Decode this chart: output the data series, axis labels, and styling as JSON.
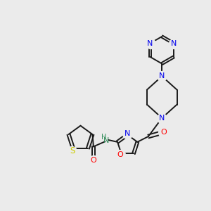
{
  "background_color": "#ebebeb",
  "bond_color": "#1a1a1a",
  "nitrogen_color": "#0000ee",
  "oxygen_color": "#ff0000",
  "sulfur_color": "#cccc00",
  "teal_color": "#2e8b57",
  "figsize": [
    3.0,
    3.0
  ],
  "dpi": 100,
  "xlim": [
    0,
    10
  ],
  "ylim": [
    0,
    10
  ]
}
